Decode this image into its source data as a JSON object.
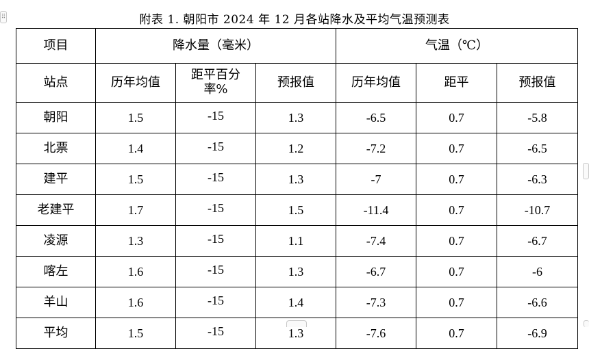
{
  "title": "附表 1. 朝阳市 2024 年 12 月各站降水及平均气温预测表",
  "header": {
    "item": "项目",
    "precip_group": "降水量（毫米）",
    "temp_group": "气温（℃）",
    "station": "站点",
    "precip_cols": [
      "历年均值",
      "距平百分率%",
      "预报值"
    ],
    "temp_cols": [
      "历年均值",
      "距平",
      "预报值"
    ]
  },
  "rows": [
    {
      "station": "朝阳",
      "p_avg": "1.5",
      "p_anom": "-15",
      "p_fc": "1.3",
      "t_avg": "-6.5",
      "t_anom": "0.7",
      "t_fc": "-5.8"
    },
    {
      "station": "北票",
      "p_avg": "1.4",
      "p_anom": "-15",
      "p_fc": "1.2",
      "t_avg": "-7.2",
      "t_anom": "0.7",
      "t_fc": "-6.5"
    },
    {
      "station": "建平",
      "p_avg": "1.5",
      "p_anom": "-15",
      "p_fc": "1.3",
      "t_avg": "-7",
      "t_anom": "0.7",
      "t_fc": "-6.3"
    },
    {
      "station": "老建平",
      "p_avg": "1.7",
      "p_anom": "-15",
      "p_fc": "1.5",
      "t_avg": "-11.4",
      "t_anom": "0.7",
      "t_fc": "-10.7"
    },
    {
      "station": "凌源",
      "p_avg": "1.3",
      "p_anom": "-15",
      "p_fc": "1.1",
      "t_avg": "-7.4",
      "t_anom": "0.7",
      "t_fc": "-6.7"
    },
    {
      "station": "喀左",
      "p_avg": "1.6",
      "p_anom": "-15",
      "p_fc": "1.3",
      "t_avg": "-6.7",
      "t_anom": "0.7",
      "t_fc": "-6"
    },
    {
      "station": "羊山",
      "p_avg": "1.6",
      "p_anom": "-15",
      "p_fc": "1.4",
      "t_avg": "-7.3",
      "t_anom": "0.7",
      "t_fc": "-6.6"
    },
    {
      "station": "平均",
      "p_avg": "1.5",
      "p_anom": "-15",
      "p_fc": "1.3",
      "t_avg": "-7.6",
      "t_anom": "0.7",
      "t_fc": "-6.9"
    }
  ]
}
